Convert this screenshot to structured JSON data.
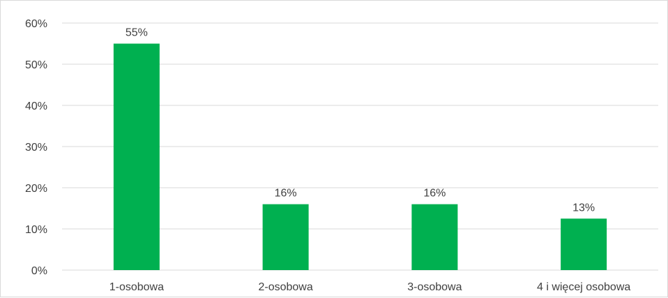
{
  "chart_data": {
    "type": "bar",
    "categories": [
      "1-osobowa",
      "2-osobowa",
      "3-osobowa",
      "4 i więcej osobowa"
    ],
    "values": [
      55,
      16,
      16,
      12.5
    ],
    "data_labels": [
      "55%",
      "16%",
      "16%",
      "13%"
    ],
    "ylim": [
      0,
      60
    ],
    "yticks": [
      0,
      10,
      20,
      30,
      40,
      50,
      60
    ],
    "ytick_labels": [
      "0%",
      "10%",
      "20%",
      "30%",
      "40%",
      "50%",
      "60%"
    ],
    "grid": true,
    "legend": "none",
    "colors": {
      "bar": "#00b050",
      "grid": "#d9d9d9",
      "text": "#404040"
    }
  }
}
